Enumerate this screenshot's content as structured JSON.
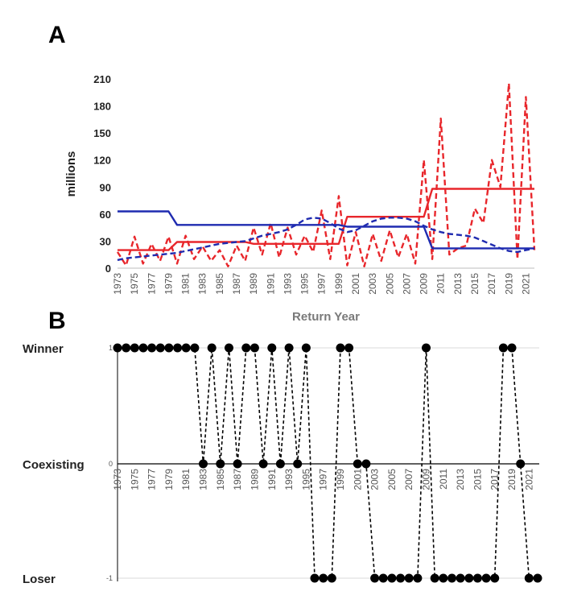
{
  "panels": {
    "a": "A",
    "b": "B"
  },
  "chart_data": [
    {
      "type": "line",
      "panel": "A",
      "title": "",
      "xlabel": "Return Year",
      "ylabel": "millions",
      "ylim": [
        0,
        210
      ],
      "yticks": [
        0,
        30,
        60,
        90,
        120,
        150,
        180,
        210
      ],
      "grid": false,
      "legend": "none",
      "x_tick_labels": [
        "1973",
        "1975",
        "1977",
        "1979",
        "1981",
        "1983",
        "1985",
        "1987",
        "1989",
        "1991",
        "1993",
        "1995",
        "1997",
        "1999",
        "2001",
        "2003",
        "2005",
        "2007",
        "2009",
        "2011",
        "2013",
        "2015",
        "2017",
        "2019",
        "2021"
      ],
      "x": [
        1973,
        1974,
        1975,
        1976,
        1977,
        1978,
        1979,
        1980,
        1981,
        1982,
        1983,
        1984,
        1985,
        1986,
        1987,
        1988,
        1989,
        1990,
        1991,
        1992,
        1993,
        1994,
        1995,
        1996,
        1997,
        1998,
        1999,
        2000,
        2001,
        2002,
        2003,
        2004,
        2005,
        2006,
        2007,
        2008,
        2009,
        2010,
        2011,
        2012,
        2013,
        2014,
        2015,
        2016,
        2017,
        2018,
        2019,
        2020,
        2021,
        2022
      ],
      "series": [
        {
          "color": "#e8262b",
          "style": "dashed",
          "width": 2.4,
          "values": [
            18,
            3,
            35,
            5,
            27,
            8,
            35,
            5,
            36,
            10,
            24,
            8,
            20,
            2,
            25,
            8,
            45,
            15,
            50,
            12,
            45,
            15,
            36,
            18,
            64,
            10,
            80,
            3,
            40,
            2,
            38,
            8,
            42,
            12,
            38,
            5,
            120,
            10,
            166,
            15,
            22,
            25,
            66,
            50,
            120,
            90,
            205,
            10,
            190,
            20
          ]
        },
        {
          "color": "#e8262b",
          "style": "solid",
          "width": 2.4,
          "values": [
            20,
            20,
            20,
            20,
            20,
            20,
            20,
            29,
            29,
            29,
            29,
            29,
            29,
            29,
            29,
            29,
            27,
            27,
            27,
            27,
            27,
            27,
            27,
            27,
            27,
            27,
            27,
            57,
            57,
            57,
            57,
            57,
            57,
            57,
            57,
            57,
            57,
            88,
            88,
            88,
            88,
            88,
            88,
            88,
            88,
            88,
            88,
            88,
            88,
            88
          ]
        },
        {
          "color": "#1f2bb0",
          "style": "solid",
          "width": 2.4,
          "values": [
            63,
            63,
            63,
            63,
            63,
            63,
            63,
            48,
            48,
            48,
            48,
            48,
            48,
            48,
            48,
            48,
            48,
            48,
            48,
            48,
            48,
            48,
            48,
            48,
            48,
            48,
            48,
            46,
            46,
            46,
            46,
            46,
            46,
            46,
            46,
            46,
            46,
            22,
            22,
            22,
            22,
            22,
            22,
            22,
            22,
            22,
            22,
            22,
            22,
            22
          ]
        },
        {
          "color": "#1f2bb0",
          "style": "dashed",
          "width": 2.4,
          "values": [
            9,
            11,
            12,
            13,
            14,
            15,
            16,
            17,
            19,
            21,
            23,
            25,
            27,
            28,
            29,
            30,
            33,
            36,
            38,
            40,
            43,
            48,
            54,
            56,
            55,
            50,
            44,
            40,
            42,
            47,
            52,
            55,
            56,
            56,
            55,
            52,
            47,
            43,
            40,
            38,
            37,
            36,
            34,
            30,
            26,
            22,
            19,
            18,
            20,
            22
          ]
        }
      ]
    },
    {
      "type": "line",
      "panel": "B",
      "title": "",
      "xlabel": "",
      "ylabel": "",
      "ylim": [
        -1,
        1
      ],
      "yticks": [
        {
          "value": 1,
          "label": "Winner",
          "num": "1"
        },
        {
          "value": 0,
          "label": "Coexisting",
          "num": "0"
        },
        {
          "value": -1,
          "label": "Loser",
          "num": "-1"
        }
      ],
      "grid": true,
      "legend": "none",
      "x_tick_labels": [
        "1973",
        "1975",
        "1977",
        "1979",
        "1981",
        "1983",
        "1985",
        "1987",
        "1989",
        "1991",
        "1993",
        "1995",
        "1997",
        "1999",
        "2001",
        "2003",
        "2005",
        "2007",
        "2009",
        "2011",
        "2013",
        "2015",
        "2017",
        "2019",
        "2021"
      ],
      "x": [
        1973,
        1974,
        1975,
        1976,
        1977,
        1978,
        1979,
        1980,
        1981,
        1982,
        1983,
        1984,
        1985,
        1986,
        1987,
        1988,
        1989,
        1990,
        1991,
        1992,
        1993,
        1994,
        1995,
        1996,
        1997,
        1998,
        1999,
        2000,
        2001,
        2002,
        2003,
        2004,
        2005,
        2006,
        2007,
        2008,
        2009,
        2010,
        2011,
        2012,
        2013,
        2014,
        2015,
        2016,
        2017,
        2018,
        2019,
        2020,
        2021,
        2022
      ],
      "series": [
        {
          "color": "#000000",
          "style": "dashed",
          "marker": "circle",
          "values": [
            1,
            1,
            1,
            1,
            1,
            1,
            1,
            1,
            1,
            1,
            0,
            1,
            0,
            1,
            0,
            1,
            1,
            0,
            1,
            0,
            1,
            0,
            1,
            -1,
            -1,
            -1,
            1,
            1,
            0,
            0,
            -1,
            -1,
            -1,
            -1,
            -1,
            -1,
            1,
            -1,
            -1,
            -1,
            -1,
            -1,
            -1,
            -1,
            -1,
            1,
            1,
            0,
            -1,
            -1
          ]
        }
      ]
    }
  ]
}
